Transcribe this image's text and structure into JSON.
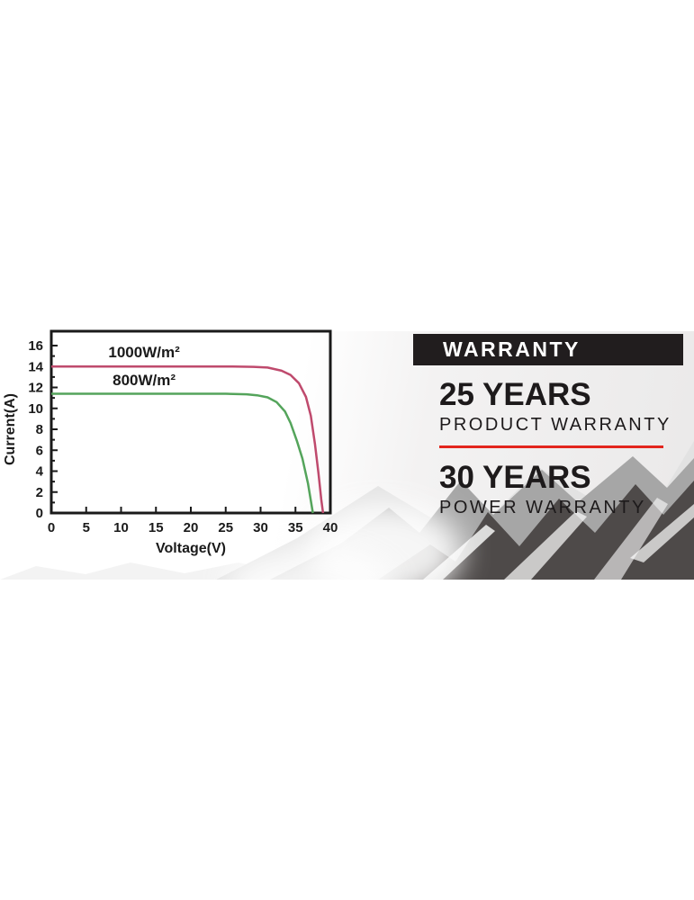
{
  "chart_data": {
    "type": "line",
    "xlabel": "Voltage(V)",
    "ylabel": "Current(A)",
    "xlim": [
      0,
      40
    ],
    "ylim": [
      0,
      16
    ],
    "xticks": [
      0,
      5,
      10,
      15,
      20,
      25,
      30,
      35,
      40
    ],
    "yticks": [
      0,
      2,
      4,
      6,
      8,
      10,
      12,
      14,
      16
    ],
    "y_minor_step": 1,
    "grid": false,
    "axis_color": "#1a1a1a",
    "series": [
      {
        "name": "1000W/m²",
        "color": "#bf4a6d",
        "points": [
          [
            0,
            14
          ],
          [
            5,
            14
          ],
          [
            10,
            14
          ],
          [
            15,
            14
          ],
          [
            20,
            14
          ],
          [
            26,
            14
          ],
          [
            29,
            13.97
          ],
          [
            31,
            13.9
          ],
          [
            33,
            13.6
          ],
          [
            34.3,
            13.2
          ],
          [
            35.5,
            12.4
          ],
          [
            36.5,
            11.1
          ],
          [
            37.2,
            9.3
          ],
          [
            37.8,
            6.6
          ],
          [
            38.3,
            3.8
          ],
          [
            38.7,
            1.3
          ],
          [
            38.95,
            0
          ]
        ]
      },
      {
        "name": "800W/m²",
        "color": "#54a45b",
        "points": [
          [
            0,
            11.4
          ],
          [
            5,
            11.4
          ],
          [
            10,
            11.4
          ],
          [
            15,
            11.4
          ],
          [
            20,
            11.4
          ],
          [
            25,
            11.4
          ],
          [
            28,
            11.35
          ],
          [
            29.5,
            11.25
          ],
          [
            31,
            11.05
          ],
          [
            32.3,
            10.6
          ],
          [
            33.5,
            9.7
          ],
          [
            34.3,
            8.6
          ],
          [
            35.2,
            6.9
          ],
          [
            36,
            5.2
          ],
          [
            36.8,
            2.8
          ],
          [
            37.5,
            0
          ]
        ]
      }
    ],
    "annotations": [
      {
        "text": "1000W/m²",
        "x": 13.3,
        "y": 14.9,
        "color": "#1a1a1a"
      },
      {
        "text": "800W/m²",
        "x": 13.3,
        "y": 12.2,
        "color": "#1a1a1a"
      }
    ],
    "legend_position": "inline-labels"
  },
  "warranty": {
    "header": "WARRANTY",
    "header_bg": "#211d1e",
    "header_color": "#ffffff",
    "text_color": "#1d1a1b",
    "divider_color": "#e3251d",
    "items": [
      {
        "years": "25 YEARS",
        "label": "PRODUCT WARRANTY"
      },
      {
        "years": "30 YEARS",
        "label": "POWER WARRANTY"
      }
    ]
  },
  "scene": {
    "mountain_dark": "#4e4a49",
    "mountain_mid": "#a6a6a6",
    "mountain_light": "#e2e2e2",
    "foothill_light": "#f3f3f3",
    "snow": "#ffffff"
  }
}
